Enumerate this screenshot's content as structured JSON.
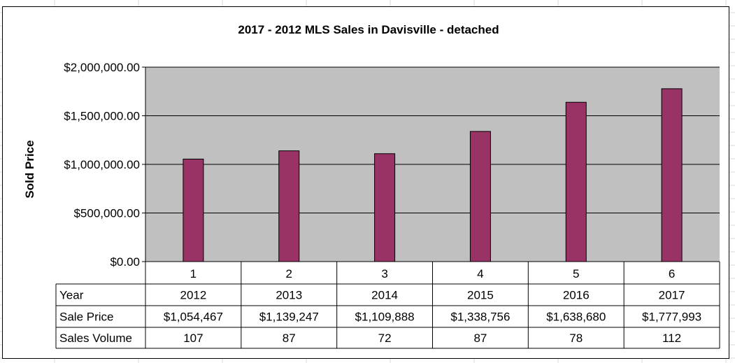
{
  "chart_data": {
    "type": "bar",
    "title": "2017 - 2012 MLS Sales in Davisville - detached",
    "ylabel": "Sold Price",
    "xlabel": "",
    "ylim": [
      0,
      2000000
    ],
    "y_ticks": [
      "$0.00",
      "$500,000.00",
      "$1,000,000.00",
      "$1,500,000.00",
      "$2,000,000.00"
    ],
    "y_tick_values": [
      0,
      500000,
      1000000,
      1500000,
      2000000
    ],
    "categories": [
      "1",
      "2",
      "3",
      "4",
      "5",
      "6"
    ],
    "values": [
      1054467,
      1139247,
      1109888,
      1338756,
      1638680,
      1777993
    ],
    "grid": true,
    "bar_color": "#993366",
    "plot_background": "#c0c0c0",
    "data_table": {
      "rows": [
        {
          "header": "Year",
          "cells": [
            "2012",
            "2013",
            "2014",
            "2015",
            "2016",
            "2017"
          ]
        },
        {
          "header": "Sale Price",
          "cells": [
            "$1,054,467",
            "$1,139,247",
            "$1,109,888",
            "$1,338,756",
            "$1,638,680",
            "$1,777,993"
          ]
        },
        {
          "header": "Sales Volume",
          "cells": [
            "107",
            "87",
            "72",
            "87",
            "78",
            "112"
          ]
        }
      ]
    }
  }
}
